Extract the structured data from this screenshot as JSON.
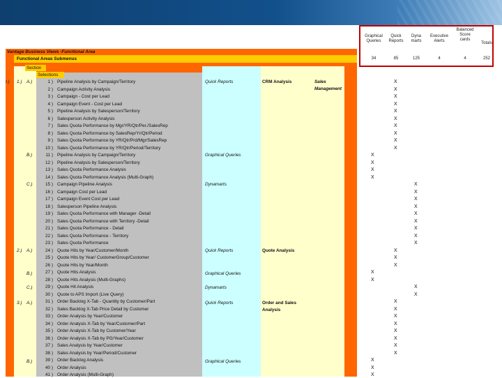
{
  "header_columns": [
    {
      "label": "Graphical\nQueries",
      "total": "34"
    },
    {
      "label": "Quick\nReports",
      "total": "85"
    },
    {
      "label": "Dyna\nmarts",
      "total": "125"
    },
    {
      "label": "Executive\nAlerts",
      "total": "4"
    },
    {
      "label": "Balanced\nScore\ncards",
      "total": "4"
    },
    {
      "label": "Totals",
      "total": "252"
    }
  ],
  "titles": {
    "main": "Vantage Business Views -Functional Area",
    "sub": "Functional Areas Submenus",
    "section": "Section",
    "selections": "Selections"
  },
  "groups": [
    {
      "label": "I.)",
      "top": 117
    },
    {
      "label": "1.)",
      "top": 117
    },
    {
      "label": "2.)",
      "top": 359
    },
    {
      "label": "3.)",
      "top": 434
    }
  ],
  "subgroups": [
    {
      "label": "A.)",
      "top": 117
    },
    {
      "label": "B.)",
      "top": 222
    },
    {
      "label": "C.)",
      "top": 264
    },
    {
      "label": "A.)",
      "top": 359
    },
    {
      "label": "B.)",
      "top": 392
    },
    {
      "label": "C.)",
      "top": 412
    },
    {
      "label": "A.)",
      "top": 434
    },
    {
      "label": "B.)",
      "top": 518
    }
  ],
  "rows": [
    {
      "n": "1 )",
      "t": "Pipeline Analysis by Campaign/Territory",
      "col": 1
    },
    {
      "n": "2 )",
      "t": "Campaign Activity Analysis",
      "col": 1
    },
    {
      "n": "3 )",
      "t": "Campaign - Cost per Lead",
      "col": 1
    },
    {
      "n": "4 )",
      "t": "  Campaign Event - Cost per Lead",
      "col": 1
    },
    {
      "n": "5 )",
      "t": "Pipeline Analysis by Salesperson/Territory",
      "col": 1
    },
    {
      "n": "6 )",
      "t": "Salesperson Activity Analysis",
      "col": 1
    },
    {
      "n": "7 )",
      "t": "Sales Quota Performance by Mgr/YR/Qtr/Per./SalesRep",
      "col": 1
    },
    {
      "n": "8 )",
      "t": "Sales Quota Performance by SalesRep/Yr/Qtr/Period",
      "col": 1
    },
    {
      "n": "9 )",
      "t": "Sales Quota Performance by YR/Qtr/Prd/Mgr/SalesRep",
      "col": 1
    },
    {
      "n": "10 )",
      "t": "Sales Quota Performance by YR/Qtr/Period/Territory",
      "col": 1
    },
    {
      "n": "11 )",
      "t": "Pipeline Analysis by Campaign/Territory",
      "col": 0
    },
    {
      "n": "12 )",
      "t": "Pipeline Analysis by Salesperson/Territory",
      "col": 0
    },
    {
      "n": "13 )",
      "t": "Sales Quota Performance Analysis",
      "col": 0
    },
    {
      "n": "14 )",
      "t": "Sales Quota Performance Analysis (Multi-Graph)",
      "col": 0
    },
    {
      "n": "15 )",
      "t": "Campaign Pipeline Analysis",
      "col": 2
    },
    {
      "n": "16 )",
      "t": "Campaign Cost per Lead",
      "col": 2
    },
    {
      "n": "17 )",
      "t": "Campaign Event Cost per Lead",
      "col": 2
    },
    {
      "n": "18 )",
      "t": "Salesperson Pipeline Analysis",
      "col": 2
    },
    {
      "n": "19 )",
      "t": "Sales Quota Performance with Manager -Detail",
      "col": 2
    },
    {
      "n": "20 )",
      "t": "Sales Quota Performance with Territory -Detail",
      "col": 2
    },
    {
      "n": "21 )",
      "t": "Sales Quota Performance - Detail",
      "col": 2
    },
    {
      "n": "22 )",
      "t": "Sales Quota Performance - Territory",
      "col": 2
    },
    {
      "n": "23 )",
      "t": "Sales Quota Performance",
      "col": 2
    },
    {
      "n": "24 )",
      "t": "Quote Hits by Year/Customer/Month",
      "col": 1
    },
    {
      "n": "25 )",
      "t": "Quote Hits by Year/ CustomerGroup/Customer",
      "col": 1
    },
    {
      "n": "26 )",
      "t": "Quote Hits by Year/Month",
      "col": 1
    },
    {
      "n": "27 )",
      "t": "Quote Hits Analysis",
      "col": 0
    },
    {
      "n": "28 )",
      "t": "  Quote Hits Analysis (Multi-Graphs)",
      "col": 0
    },
    {
      "n": "29 )",
      "t": "Quote Hit Analysis",
      "col": 2
    },
    {
      "n": "30 )",
      "t": "Quote to APS Import (Live Query)",
      "col": 2
    },
    {
      "n": "31 )",
      "t": "Order Backlog X-Tab - Quantity by Customer/Part",
      "col": 1
    },
    {
      "n": "32 )",
      "t": "Sales Backlog X-Tab Price Detail by Customer",
      "col": 1
    },
    {
      "n": "33 )",
      "t": "Order Analysis by Year/Customer",
      "col": 1
    },
    {
      "n": "34 )",
      "t": "Order Analysis X-Tab by Year/Customer/Part",
      "col": 1
    },
    {
      "n": "35 )",
      "t": "Order Analysis X-Tab by Customer/Year",
      "col": 1
    },
    {
      "n": "36 )",
      "t": "Order Analysis X-Tab by PG/Year/Customer",
      "col": 1
    },
    {
      "n": "37 )",
      "t": "Sales Analysis by Year/Customer",
      "col": 1
    },
    {
      "n": "38 )",
      "t": "Sales Analysis by Year/Period/Customer",
      "col": 1
    },
    {
      "n": "39 )",
      "t": "Order Backlog Analysis",
      "col": 0
    },
    {
      "n": "40 )",
      "t": "Order Analysis",
      "col": 0
    },
    {
      "n": "41 )",
      "t": "Order Analysis (Multi-Graph)",
      "col": 0
    }
  ],
  "types": [
    {
      "label": "Quick Reports",
      "top": 117
    },
    {
      "label": "Graphical Queries",
      "top": 222
    },
    {
      "label": "Dynamarts",
      "top": 264
    },
    {
      "label": "Quick Reports",
      "top": 359
    },
    {
      "label": "Graphical Queries",
      "top": 392
    },
    {
      "label": "Dynamarts",
      "top": 412
    },
    {
      "label": "Quick Reports",
      "top": 434
    },
    {
      "label": "Graphical Queries",
      "top": 518
    }
  ],
  "modules": [
    {
      "label": "CRM Analysis",
      "top": 117
    },
    {
      "label": "Quote Analysis",
      "top": 359
    },
    {
      "label": "Order and Sales",
      "top": 434
    },
    {
      "label": "Analysis",
      "top": 444
    }
  ],
  "areas": [
    {
      "label": "Sales",
      "top": 117
    },
    {
      "label": "Management",
      "top": 127
    }
  ],
  "mark": "X"
}
